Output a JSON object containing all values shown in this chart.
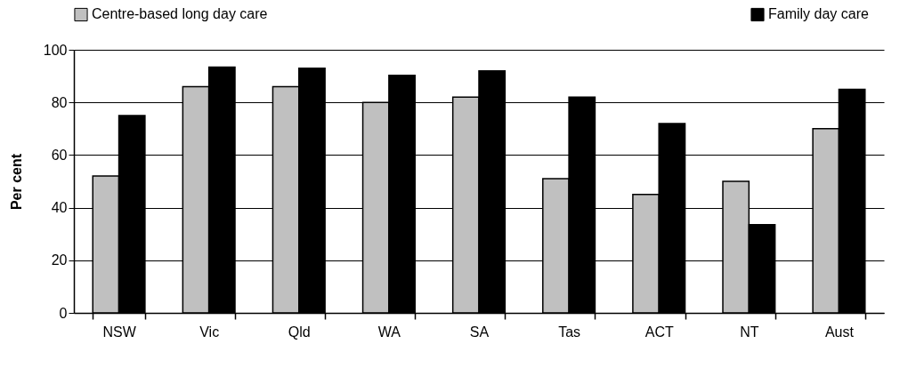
{
  "chart_data": {
    "type": "bar",
    "ylabel": "Per cent",
    "categories": [
      "NSW",
      "Vic",
      "Qld",
      "WA",
      "SA",
      "Tas",
      "ACT",
      "NT",
      "Aust"
    ],
    "series": [
      {
        "name": "Centre-based long day care",
        "color": "#c0c0c0",
        "values": [
          52,
          86,
          86,
          80,
          82,
          51,
          45,
          50,
          70
        ]
      },
      {
        "name": "Family day care",
        "color": "#000000",
        "values": [
          75,
          93.4,
          93,
          90.3,
          92,
          82,
          72,
          33.5,
          85
        ]
      }
    ],
    "ylim": [
      0,
      100
    ],
    "yticks": [
      0,
      20,
      40,
      60,
      80,
      100
    ],
    "grid": "y",
    "legend": "top"
  }
}
